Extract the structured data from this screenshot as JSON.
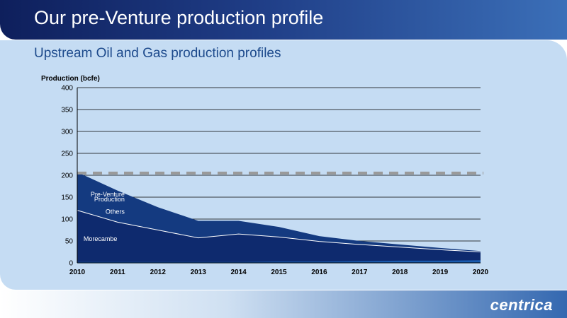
{
  "slide": {
    "title": "Our pre-Venture production profile",
    "subtitle": "Upstream Oil and Gas production profiles",
    "logo": "centrica"
  },
  "colors": {
    "header_dark": "#0e1f5c",
    "header_light": "#3b6fb8",
    "panel": "#c5dcf3",
    "morecambe": "#0e2a6e",
    "others": "#143a80",
    "base": "#1a5cb0",
    "reference_line": "#9a9a9a",
    "subtitle": "#1d4a8c"
  },
  "chart_data": {
    "type": "area",
    "ylabel": "Production (bcfe)",
    "ylim": [
      0,
      400
    ],
    "yticks": [
      0,
      50,
      100,
      150,
      200,
      250,
      300,
      350,
      400
    ],
    "x": [
      "2010",
      "2011",
      "2012",
      "2013",
      "2014",
      "2015",
      "2016",
      "2017",
      "2018",
      "2019",
      "2020"
    ],
    "grid": true,
    "stacked": true,
    "series": [
      {
        "name": "Morecambe",
        "values": [
          120,
          93,
          75,
          57,
          66,
          59,
          49,
          42,
          36,
          30,
          25
        ]
      },
      {
        "name": "Others",
        "values": [
          87,
          72,
          52,
          39,
          30,
          23,
          12,
          8,
          6,
          4,
          2
        ]
      }
    ],
    "base_series": {
      "values": [
        2,
        2,
        2,
        2,
        2,
        3,
        3,
        4,
        5,
        5,
        6
      ]
    },
    "reference_line": {
      "value": 205,
      "style": "dashed"
    },
    "annotations": [
      {
        "text": "Pre-Venture",
        "x": "2011",
        "y": 152
      },
      {
        "text": "Production",
        "x": "2011",
        "y": 140
      },
      {
        "text": "Others",
        "x": "2011",
        "y": 112
      },
      {
        "text": "Morecambe",
        "x": "2011",
        "y": 50
      }
    ]
  }
}
